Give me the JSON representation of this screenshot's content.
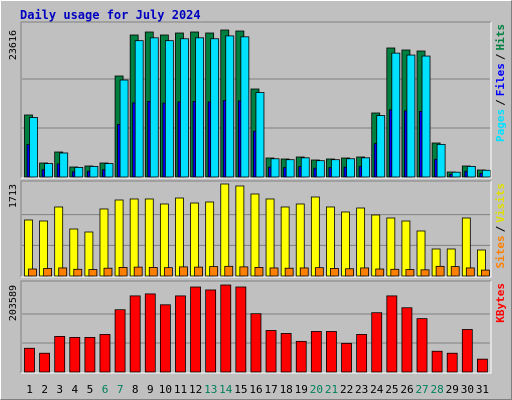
{
  "chart_data": [
    {
      "type": "bar",
      "title": "Daily usage for July 2024",
      "legend_separator": "/",
      "ylim": [
        0,
        23616
      ],
      "yticks": [
        23616
      ],
      "series": [
        {
          "name": "Hits",
          "color": "#008040",
          "values": [
            9960,
            2249,
            4016,
            1607,
            1767,
            2249,
            16226,
            22812,
            23294,
            22812,
            23134,
            23294,
            23134,
            23616,
            23455,
            14137,
            3052,
            2892,
            3213,
            2731,
            2892,
            3052,
            3213,
            10282,
            20724,
            20403,
            20242,
            5462,
            803,
            1767,
            1125
          ]
        },
        {
          "name": "Files",
          "color": "#0000ff",
          "values": [
            5210,
            1180,
            2100,
            840,
            920,
            1170,
            8450,
            11900,
            12150,
            11880,
            12060,
            12140,
            12050,
            12310,
            12220,
            7360,
            1590,
            1510,
            1670,
            1420,
            1510,
            1590,
            1670,
            5360,
            10800,
            10630,
            10550,
            2850,
            420,
            920,
            590
          ]
        },
        {
          "name": "Pages",
          "color": "#00e0ff",
          "values": [
            9560,
            2160,
            3860,
            1540,
            1700,
            2160,
            15580,
            21900,
            22360,
            21900,
            22210,
            22360,
            22210,
            22670,
            22520,
            13570,
            2930,
            2780,
            3080,
            2620,
            2780,
            2930,
            3080,
            9870,
            19900,
            19590,
            19430,
            5240,
            770,
            1700,
            1080
          ]
        }
      ]
    },
    {
      "type": "bar",
      "legend_separator": "/",
      "ylim": [
        0,
        1713
      ],
      "yticks": [
        1713
      ],
      "series": [
        {
          "name": "Visits",
          "color": "#ffff00",
          "values": [
            1043,
            1024,
            1285,
            875,
            819,
            1248,
            1415,
            1434,
            1434,
            1341,
            1452,
            1359,
            1378,
            1713,
            1676,
            1527,
            1434,
            1285,
            1341,
            1471,
            1285,
            1192,
            1266,
            1136,
            1080,
            1024,
            838,
            503,
            503,
            1080,
            484
          ]
        },
        {
          "name": "Sites",
          "color": "#ff8000",
          "values": [
            130,
            140,
            150,
            125,
            120,
            145,
            160,
            165,
            160,
            155,
            170,
            165,
            175,
            180,
            170,
            160,
            150,
            145,
            150,
            155,
            140,
            135,
            150,
            130,
            125,
            120,
            115,
            180,
            175,
            150,
            110
          ]
        }
      ]
    },
    {
      "type": "bar",
      "ylim": [
        0,
        203589
      ],
      "yticks": [
        203589
      ],
      "categories": [
        "1",
        "2",
        "3",
        "4",
        "5",
        "6",
        "7",
        "8",
        "9",
        "10",
        "11",
        "12",
        "13",
        "14",
        "15",
        "16",
        "17",
        "18",
        "19",
        "20",
        "21",
        "22",
        "23",
        "24",
        "25",
        "26",
        "27",
        "28",
        "29",
        "30",
        "31"
      ],
      "category_colors": [
        "#000",
        "#000",
        "#000",
        "#000",
        "#000",
        "#00805c",
        "#00805c",
        "#000",
        "#000",
        "#000",
        "#000",
        "#000",
        "#00805c",
        "#00805c",
        "#000",
        "#000",
        "#000",
        "#000",
        "#000",
        "#00805c",
        "#00805c",
        "#000",
        "#000",
        "#000",
        "#000",
        "#000",
        "#00805c",
        "#00805c",
        "#000",
        "#000",
        "#000"
      ],
      "series": [
        {
          "name": "KBytes",
          "color": "#ff0000",
          "values": [
            55510,
            43946,
            83264,
            80951,
            80951,
            87890,
            145714,
            178095,
            182721,
            157278,
            178095,
            198911,
            191973,
            203589,
            198911,
            136463,
            97143,
            90204,
            71701,
            94830,
            94830,
            67074,
            87890,
            138776,
            178095,
            150341,
            124898,
            48571,
            43946,
            99456,
            30068
          ]
        }
      ]
    }
  ]
}
